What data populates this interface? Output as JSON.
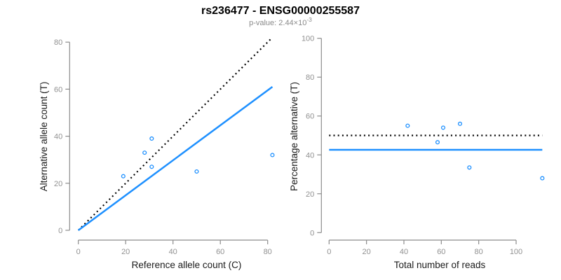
{
  "header": {
    "title": "rs236477 - ENSG00000255587",
    "subtitle_prefix": "p-value: 2.44×10",
    "subtitle_exponent": "-3"
  },
  "colors": {
    "accent_blue": "#1E90FF",
    "line_black": "#000000",
    "axis_gray": "#8c8c8c",
    "tick_label_gray": "#919191",
    "title_black": "#000000",
    "subtitle_gray": "#8a8a8a",
    "background": "#ffffff"
  },
  "chart_data": [
    {
      "id": "allele-counts-scatter",
      "type": "scatter",
      "xlabel": "Reference allele count (C)",
      "ylabel": "Alternative allele count (T)",
      "xlim": [
        0,
        85
      ],
      "ylim": [
        0,
        82
      ],
      "xticks": [
        0,
        20,
        40,
        60,
        80
      ],
      "yticks": [
        0,
        20,
        40,
        60,
        80
      ],
      "grid": false,
      "marker": "open-circle",
      "points": [
        {
          "x": 19,
          "y": 23
        },
        {
          "x": 28,
          "y": 33
        },
        {
          "x": 31,
          "y": 39
        },
        {
          "x": 31,
          "y": 27
        },
        {
          "x": 50,
          "y": 25
        },
        {
          "x": 82,
          "y": 32
        }
      ],
      "lines": [
        {
          "name": "expected-identity-line",
          "style": "dotted",
          "color": "#000000",
          "x1": 0,
          "y1": 0,
          "x2": 82,
          "y2": 82
        },
        {
          "name": "observed-fit-line",
          "style": "solid",
          "color": "#1E90FF",
          "x1": 0,
          "y1": 0,
          "x2": 82,
          "y2": 61
        }
      ]
    },
    {
      "id": "percentage-vs-reads-scatter",
      "type": "scatter",
      "xlabel": "Total number of reads",
      "ylabel": "Percentage alternative (T)",
      "xlim": [
        0,
        115
      ],
      "ylim": [
        0,
        100
      ],
      "xticks": [
        0,
        20,
        40,
        60,
        80,
        100
      ],
      "yticks": [
        0,
        20,
        40,
        60,
        80,
        100
      ],
      "grid": false,
      "marker": "open-circle",
      "points": [
        {
          "x": 42,
          "y": 55
        },
        {
          "x": 58,
          "y": 46.5
        },
        {
          "x": 61,
          "y": 54
        },
        {
          "x": 70,
          "y": 56
        },
        {
          "x": 75,
          "y": 33.5
        },
        {
          "x": 114,
          "y": 28
        }
      ],
      "lines": [
        {
          "name": "expected-50-percent-line",
          "style": "dotted",
          "color": "#000000",
          "x1": 0,
          "y1": 50,
          "x2": 114,
          "y2": 50
        },
        {
          "name": "observed-mean-percentage-line",
          "style": "solid",
          "color": "#1E90FF",
          "x1": 0,
          "y1": 42.6,
          "x2": 114,
          "y2": 42.6
        }
      ]
    }
  ]
}
